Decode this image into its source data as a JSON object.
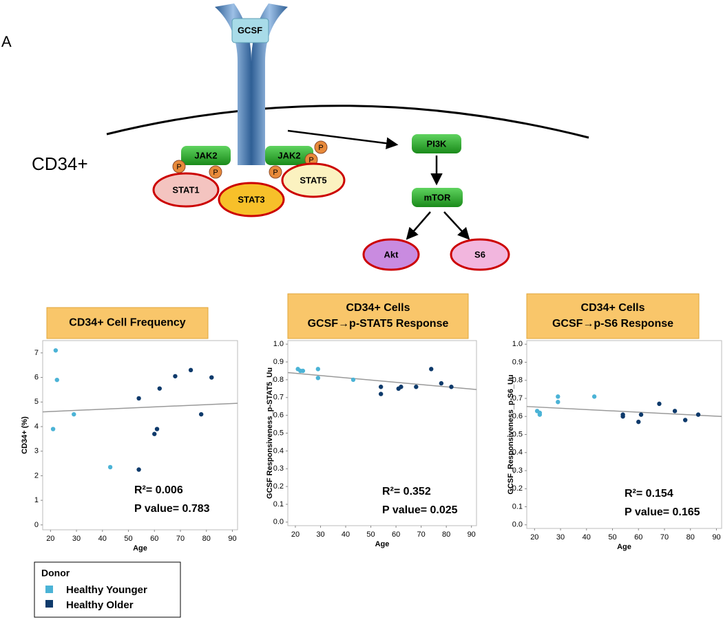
{
  "diagram": {
    "panel_label": "A",
    "cell_label": "CD34+",
    "receptor": "GCSF",
    "jak": [
      "JAK2",
      "JAK2"
    ],
    "p_sites": [
      "P",
      "P",
      "P",
      "P",
      "P"
    ],
    "stats": [
      "STAT1",
      "STAT3",
      "STAT5"
    ],
    "pathway": [
      "PI3K",
      "mTOR"
    ],
    "targets": [
      "Akt",
      "S6"
    ]
  },
  "legend": {
    "title": "Donor"
  },
  "chart_data": [
    {
      "type": "scatter",
      "title_lines": [
        "CD34+ Cell Frequency"
      ],
      "xlabel": "Age",
      "ylabel": "CD34+ (%)",
      "xlim": [
        17,
        92
      ],
      "xticks": [
        20,
        30,
        40,
        50,
        60,
        70,
        80,
        90
      ],
      "ylim": [
        -0.2,
        7.5
      ],
      "yticks": [
        0,
        1,
        2,
        3,
        4,
        5,
        6,
        7
      ],
      "series": [
        {
          "name": "Healthy Younger",
          "color": "#4bb3d6",
          "x": [
            21,
            22,
            22.5,
            29,
            43
          ],
          "values": [
            3.9,
            7.1,
            5.9,
            4.5,
            2.35
          ]
        },
        {
          "name": "Healthy Older",
          "color": "#0e3a6b",
          "x": [
            54,
            54,
            60,
            61,
            62,
            68,
            74,
            78,
            82
          ],
          "values": [
            5.15,
            2.25,
            3.7,
            3.9,
            5.55,
            6.05,
            6.3,
            4.5,
            6.0
          ]
        }
      ],
      "trend": {
        "x": [
          17,
          92
        ],
        "y": [
          4.6,
          4.95
        ]
      },
      "annotations": [
        "R²= 0.006",
        "P value= 0.783"
      ]
    },
    {
      "type": "scatter",
      "title_lines": [
        "CD34+ Cells",
        "GCSF→p-STAT5 Response"
      ],
      "xlabel": "Age",
      "ylabel": "GCSF Responsiveness_p-STAT5_Uu",
      "xlim": [
        17,
        92
      ],
      "xticks": [
        20,
        30,
        40,
        50,
        60,
        70,
        80,
        90
      ],
      "ylim": [
        -0.02,
        1.02
      ],
      "yticks": [
        {
          "value": 0,
          "label": "0.0"
        },
        0.1,
        0.2,
        0.3,
        0.4,
        0.5,
        0.6,
        0.7,
        0.8,
        0.9,
        {
          "value": 1,
          "label": "1.0"
        }
      ],
      "series": [
        {
          "name": "Healthy Younger",
          "color": "#4bb3d6",
          "x": [
            21,
            22,
            23,
            29,
            29,
            43
          ],
          "values": [
            0.86,
            0.85,
            0.85,
            0.86,
            0.81,
            0.8
          ]
        },
        {
          "name": "Healthy Older",
          "color": "#0e3a6b",
          "x": [
            54,
            54,
            61,
            62,
            68,
            74,
            78,
            82
          ],
          "values": [
            0.76,
            0.72,
            0.75,
            0.76,
            0.76,
            0.86,
            0.78,
            0.76
          ]
        }
      ],
      "trend": {
        "x": [
          17,
          92
        ],
        "y": [
          0.84,
          0.745
        ]
      },
      "annotations": [
        "R²= 0.352",
        "P value= 0.025"
      ]
    },
    {
      "type": "scatter",
      "title_lines": [
        "CD34+ Cells",
        "GCSF→p-S6 Response"
      ],
      "xlabel": "Age",
      "ylabel": "GCSF_Responsiveness_p-S6_Uu",
      "xlim": [
        17,
        92
      ],
      "xticks": [
        20,
        30,
        40,
        50,
        60,
        70,
        80,
        90
      ],
      "ylim": [
        -0.02,
        1.02
      ],
      "yticks": [
        {
          "value": 0,
          "label": "0.0"
        },
        0.1,
        0.2,
        0.3,
        0.4,
        0.5,
        0.6,
        0.7,
        0.8,
        0.9,
        {
          "value": 1,
          "label": "1.0"
        }
      ],
      "series": [
        {
          "name": "Healthy Younger",
          "color": "#4bb3d6",
          "x": [
            21,
            22,
            22,
            29,
            29,
            43
          ],
          "values": [
            0.63,
            0.62,
            0.61,
            0.71,
            0.68,
            0.71
          ]
        },
        {
          "name": "Healthy Older",
          "color": "#0e3a6b",
          "x": [
            54,
            54,
            60,
            61,
            68,
            74,
            78,
            83
          ],
          "values": [
            0.61,
            0.6,
            0.57,
            0.61,
            0.67,
            0.63,
            0.58,
            0.61
          ]
        }
      ],
      "trend": {
        "x": [
          17,
          92
        ],
        "y": [
          0.655,
          0.6
        ]
      },
      "annotations": [
        "R²= 0.154",
        "P value= 0.165"
      ]
    }
  ]
}
